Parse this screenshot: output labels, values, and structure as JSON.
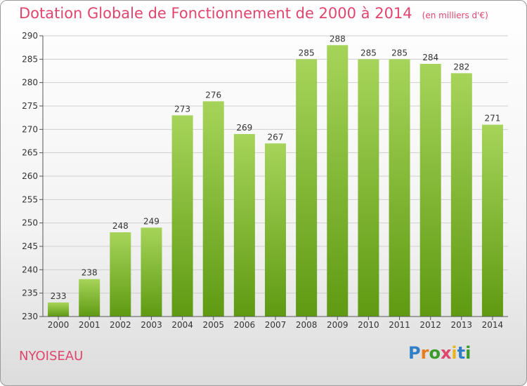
{
  "header": {
    "title": "Dotation Globale de Fonctionnement de 2000 à 2014",
    "unit": "(en milliers d'€)"
  },
  "footer": {
    "place": "NYOISEAU",
    "logo": [
      "P",
      "r",
      "o",
      "x",
      "i",
      "t",
      "i"
    ]
  },
  "colors": {
    "title": "#e0456e",
    "bar_top": "#a6d45a",
    "bar_bottom": "#5f9a12",
    "grid": "#cfcfcf",
    "logo": [
      "#2f7fc8",
      "#e87c1e",
      "#3a9a2a",
      "#e0456e",
      "#e8b41e",
      "#2f7fc8",
      "#3a9a2a"
    ]
  },
  "chart_data": {
    "type": "bar",
    "title": "Dotation Globale de Fonctionnement de 2000 à 2014",
    "categories": [
      "2000",
      "2001",
      "2002",
      "2003",
      "2004",
      "2005",
      "2006",
      "2007",
      "2008",
      "2009",
      "2010",
      "2011",
      "2012",
      "2013",
      "2014"
    ],
    "values": [
      233,
      238,
      248,
      249,
      273,
      276,
      269,
      267,
      285,
      288,
      285,
      285,
      284,
      282,
      271
    ],
    "ylim": [
      230,
      290
    ],
    "yticks": [
      230,
      235,
      240,
      245,
      250,
      255,
      260,
      265,
      270,
      275,
      280,
      285,
      290
    ],
    "grid": true,
    "xlabel": "",
    "ylabel": ""
  }
}
